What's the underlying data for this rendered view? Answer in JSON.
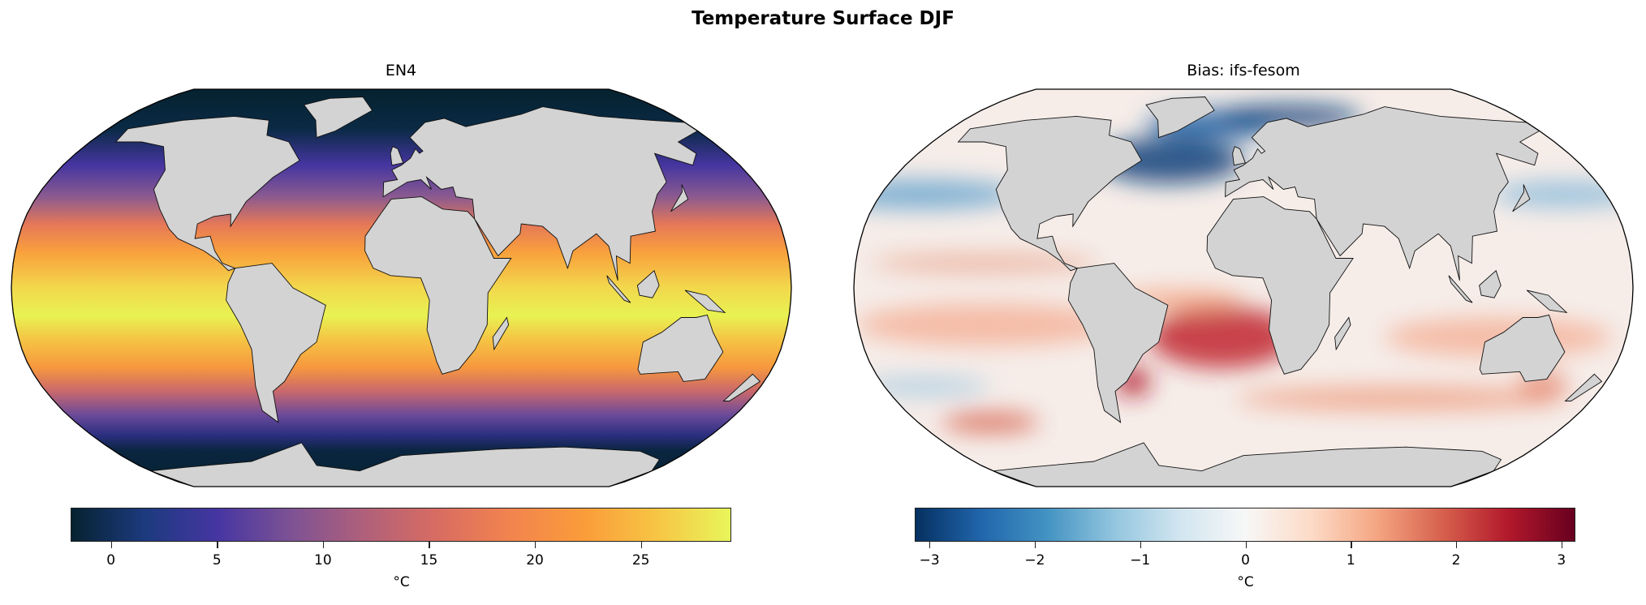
{
  "figure": {
    "title": "Temperature Surface DJF"
  },
  "panels": [
    {
      "title": "EN4",
      "colormap": "thermal",
      "colorbar": {
        "label": "°C",
        "vmin": -1.9,
        "vmax": 29.3,
        "ticks": [
          0,
          5,
          10,
          15,
          20,
          25
        ],
        "tick_labels": [
          "0",
          "5",
          "10",
          "15",
          "20",
          "25"
        ],
        "colors": [
          "#062230",
          "#1c3a7e",
          "#4636a2",
          "#7d5294",
          "#b0607a",
          "#d86c62",
          "#f2844e",
          "#fa9c3a",
          "#f7c544",
          "#e8f65a"
        ]
      },
      "land_color": "#d3d3d3"
    },
    {
      "title": "Bias: ifs-fesom",
      "colormap": "RdBu_r",
      "colorbar": {
        "label": "°C",
        "vmin": -3.14,
        "vmax": 3.14,
        "ticks": [
          -3,
          -2,
          -1,
          0,
          1,
          2,
          3
        ],
        "tick_labels": [
          "−3",
          "−2",
          "−1",
          "0",
          "1",
          "2",
          "3"
        ],
        "colors": [
          "#053061",
          "#2166ac",
          "#4393c3",
          "#92c5de",
          "#d1e5f0",
          "#f7f7f7",
          "#fddbc7",
          "#f4a582",
          "#d6604d",
          "#b2182b",
          "#67001f"
        ]
      },
      "land_color": "#d3d3d3"
    }
  ]
}
